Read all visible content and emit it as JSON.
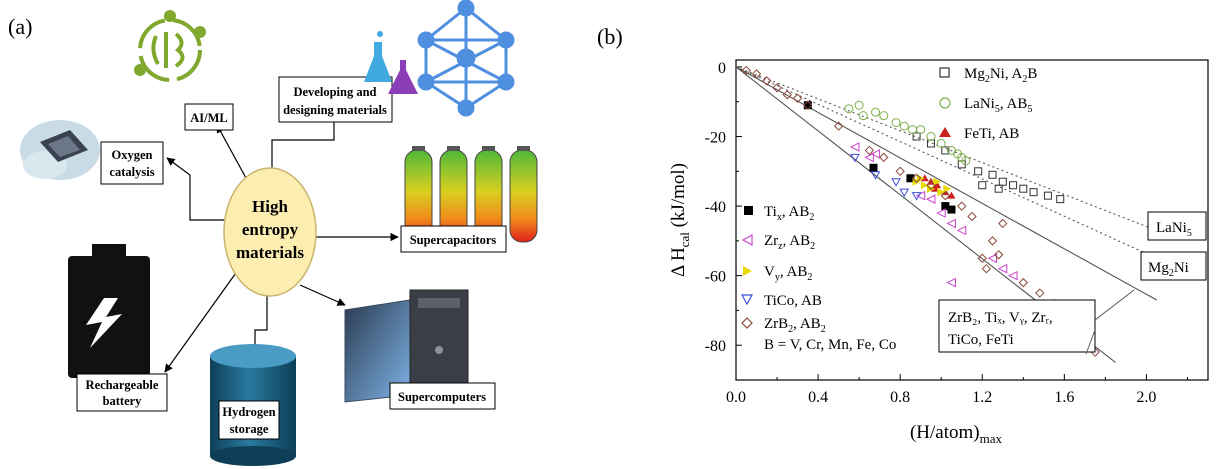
{
  "panel_a": {
    "label": "(a)",
    "center": {
      "line1": "High",
      "line2": "entropy",
      "line3": "materials"
    },
    "boxes": {
      "ai_ml": "AI/ML",
      "developing_l1": "Developing and",
      "developing_l2": "designing materials",
      "oxygen_l1": "Oxygen",
      "oxygen_l2": "catalysis",
      "supercapacitors": "Supercapacitors",
      "rechargeable_l1": "Rechargeable",
      "rechargeable_l2": "battery",
      "hydrogen_l1": "Hydrogen",
      "hydrogen_l2": "storage",
      "supercomputers": "Supercomputers"
    },
    "icons": [
      "brain-circuit-icon",
      "flask-icon",
      "network-icon",
      "catalyst-chip-icon",
      "battery-cells-icon",
      "battery-icon",
      "cylinder-icon",
      "computer-icon"
    ],
    "colors": {
      "center_fill": "#fbeeb0",
      "center_stroke": "#c9b46b",
      "brain": "#7fa82d",
      "network": "#4f8fe0",
      "cylinder": "#1b5f80",
      "battery": "#111111"
    }
  },
  "panel_b": {
    "label": "(b)",
    "yaxis_label_main": "Δ H",
    "yaxis_label_sub": "cal",
    "yaxis_label_unit": " (kJ/mol)",
    "xaxis_label_main": "(H/atom)",
    "xaxis_label_sub": "max",
    "legend_top": [
      {
        "main": "Mg",
        "sub": "2",
        "rest": "Ni, A",
        "sub2": "2",
        "rest2": "B",
        "marker": "open-square"
      },
      {
        "main": "LaNi",
        "sub": "5",
        "rest": ", AB",
        "sub2": "5",
        "rest2": "",
        "marker": "open-circle"
      },
      {
        "main": "FeTi, AB",
        "sub": "",
        "rest": "",
        "sub2": "",
        "rest2": "",
        "marker": "filled-triangle"
      }
    ],
    "legend_left": [
      {
        "main": "Ti",
        "sub": "x",
        "rest": ", AB",
        "sub2": "2",
        "marker": "filled-square"
      },
      {
        "main": "Zr",
        "sub": "z",
        "rest": ", AB",
        "sub2": "2",
        "marker": "left-triangle"
      },
      {
        "main": "V",
        "sub": "y",
        "rest": ", AB",
        "sub2": "2",
        "marker": "right-triangle"
      },
      {
        "main": "TiCo, AB",
        "sub": "",
        "rest": "",
        "sub2": "",
        "marker": "down-triangle"
      },
      {
        "main": "ZrB",
        "sub": "2",
        "rest": ", AB",
        "sub2": "2",
        "marker": "diamond"
      }
    ],
    "legend_note": "B = V, Cr, Mn, Fe, Co",
    "annotation_lani5": {
      "main": "LaNi",
      "sub": "5"
    },
    "annotation_mg2ni": {
      "main": "Mg",
      "sub": "2",
      "rest": "Ni"
    },
    "annotation_zr_line1": "ZrB₂, Tiₓ, Vᵧ, Zrᵣ,",
    "annotation_zr_line2": "TiCo, FeTi",
    "colors": {
      "mg2ni": "#333333",
      "lani5": "#7db04a",
      "feti": "#cc1f1f",
      "tix": "#000000",
      "zrz": "#cc44cc",
      "vy": "#e8d800",
      "tico": "#3c4fd6",
      "zrb2": "#8a4a3a"
    }
  },
  "chart_data": {
    "type": "scatter",
    "title": "",
    "xlabel": "(H/atom)max",
    "ylabel": "Δ Hcal (kJ/mol)",
    "xlim": [
      0,
      2.3
    ],
    "ylim": [
      -90,
      2
    ],
    "x_ticks": [
      "0.0",
      "0.4",
      "0.8",
      "1.2",
      "1.6",
      "2.0"
    ],
    "x_tick_values": [
      0,
      0.4,
      0.8,
      1.2,
      1.6,
      2.0
    ],
    "y_ticks": [
      "0",
      "-20",
      "-40",
      "-60",
      "-80"
    ],
    "y_tick_values": [
      0,
      -20,
      -40,
      -60,
      -80
    ],
    "grid": false,
    "lines": [
      {
        "name": "LaNi5",
        "style": "dotted",
        "points": [
          [
            0,
            0
          ],
          [
            2.05,
            -47
          ]
        ]
      },
      {
        "name": "Mg2Ni",
        "style": "dotted",
        "points": [
          [
            0,
            0
          ],
          [
            2.05,
            -55
          ]
        ]
      },
      {
        "name": "",
        "style": "solid",
        "points": [
          [
            0,
            0
          ],
          [
            2.05,
            -67
          ]
        ]
      },
      {
        "name": "",
        "style": "solid",
        "points": [
          [
            0,
            0
          ],
          [
            1.85,
            -85
          ]
        ]
      }
    ],
    "series": [
      {
        "name": "Mg2Ni, A2B",
        "marker": "open-square",
        "points": [
          [
            0.88,
            -20
          ],
          [
            0.95,
            -22
          ],
          [
            1.02,
            -24
          ],
          [
            1.1,
            -28
          ],
          [
            1.18,
            -30
          ],
          [
            1.25,
            -31
          ],
          [
            1.3,
            -33
          ],
          [
            1.35,
            -34
          ],
          [
            1.4,
            -35
          ],
          [
            1.45,
            -36
          ],
          [
            1.52,
            -37
          ],
          [
            1.58,
            -38
          ],
          [
            1.2,
            -34
          ],
          [
            1.28,
            -35
          ]
        ]
      },
      {
        "name": "LaNi5, AB5",
        "marker": "open-circle",
        "points": [
          [
            0.55,
            -12
          ],
          [
            0.6,
            -11
          ],
          [
            0.68,
            -13
          ],
          [
            0.72,
            -14
          ],
          [
            0.78,
            -16
          ],
          [
            0.82,
            -17
          ],
          [
            0.86,
            -18
          ],
          [
            0.9,
            -18
          ],
          [
            0.95,
            -20
          ],
          [
            1.0,
            -22
          ],
          [
            1.05,
            -24
          ],
          [
            1.1,
            -26
          ],
          [
            0.62,
            -14
          ],
          [
            1.12,
            -27
          ],
          [
            1.08,
            -25
          ]
        ]
      },
      {
        "name": "FeTi, AB",
        "marker": "filled-triangle",
        "points": [
          [
            0.95,
            -33
          ],
          [
            0.98,
            -34
          ],
          [
            1.02,
            -36
          ],
          [
            1.05,
            -37
          ],
          [
            0.92,
            -32
          ],
          [
            0.97,
            -35
          ]
        ]
      },
      {
        "name": "Tix, AB2",
        "marker": "filled-square",
        "points": [
          [
            0.35,
            -11
          ],
          [
            0.67,
            -29
          ],
          [
            0.85,
            -32
          ],
          [
            1.02,
            -40
          ],
          [
            1.05,
            -41
          ]
        ]
      },
      {
        "name": "Zrz, AB2",
        "marker": "left-triangle",
        "points": [
          [
            0.58,
            -23
          ],
          [
            0.65,
            -26
          ],
          [
            0.68,
            -25
          ],
          [
            1.05,
            -45
          ],
          [
            1.1,
            -47
          ],
          [
            1.25,
            -55
          ],
          [
            1.3,
            -58
          ],
          [
            0.9,
            -37
          ],
          [
            0.95,
            -38
          ],
          [
            1.0,
            -42
          ],
          [
            1.35,
            -60
          ],
          [
            1.05,
            -62
          ]
        ]
      },
      {
        "name": "Vy, AB2",
        "marker": "right-triangle",
        "points": [
          [
            0.88,
            -33
          ],
          [
            0.9,
            -32
          ],
          [
            0.92,
            -34
          ],
          [
            0.95,
            -35
          ],
          [
            0.98,
            -33
          ],
          [
            1.0,
            -36
          ],
          [
            1.03,
            -35
          ]
        ]
      },
      {
        "name": "TiCo, AB",
        "marker": "down-triangle",
        "points": [
          [
            0.58,
            -26
          ],
          [
            0.68,
            -31
          ],
          [
            0.78,
            -33
          ],
          [
            0.82,
            -36
          ],
          [
            0.88,
            -37
          ]
        ]
      },
      {
        "name": "ZrB2, AB2",
        "marker": "diamond",
        "points": [
          [
            0.05,
            -1
          ],
          [
            0.1,
            -2
          ],
          [
            0.15,
            -4
          ],
          [
            0.2,
            -6
          ],
          [
            0.25,
            -8
          ],
          [
            0.3,
            -9
          ],
          [
            0.35,
            -11
          ],
          [
            0.5,
            -17
          ],
          [
            0.65,
            -24
          ],
          [
            0.72,
            -26
          ],
          [
            0.8,
            -30
          ],
          [
            0.88,
            -32
          ],
          [
            0.95,
            -34
          ],
          [
            1.02,
            -37
          ],
          [
            1.1,
            -40
          ],
          [
            1.15,
            -43
          ],
          [
            1.3,
            -45
          ],
          [
            1.25,
            -50
          ],
          [
            1.2,
            -55
          ],
          [
            1.22,
            -58
          ],
          [
            1.28,
            -54
          ],
          [
            1.48,
            -65
          ],
          [
            1.55,
            -68
          ],
          [
            1.75,
            -82
          ],
          [
            1.4,
            -62
          ]
        ]
      }
    ]
  }
}
